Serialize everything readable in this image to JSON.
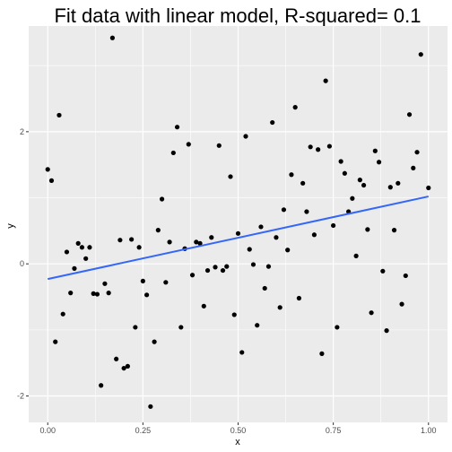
{
  "chart_data": {
    "type": "scatter",
    "title": "Fit data with linear model, R-squared= 0.1",
    "xlabel": "x",
    "ylabel": "y",
    "xlim": [
      -0.05,
      1.05
    ],
    "ylim": [
      -2.4,
      3.6
    ],
    "x_ticks": [
      0.0,
      0.25,
      0.5,
      0.75,
      1.0
    ],
    "x_tick_labels": [
      "0.00",
      "0.25",
      "0.50",
      "0.75",
      "1.00"
    ],
    "y_ticks": [
      -2,
      0,
      2
    ],
    "y_tick_labels": [
      "-2",
      "0",
      "2"
    ],
    "grid": true,
    "colors": {
      "panel": "#ebebeb",
      "grid": "#ffffff",
      "points": "#000000",
      "fit_line": "#3366ff"
    },
    "points": [
      {
        "x": 0.0,
        "y": 1.43
      },
      {
        "x": 0.01,
        "y": 1.26
      },
      {
        "x": 0.02,
        "y": -1.18
      },
      {
        "x": 0.03,
        "y": 2.25
      },
      {
        "x": 0.04,
        "y": -0.76
      },
      {
        "x": 0.05,
        "y": 0.18
      },
      {
        "x": 0.06,
        "y": -0.44
      },
      {
        "x": 0.07,
        "y": -0.07
      },
      {
        "x": 0.08,
        "y": 0.31
      },
      {
        "x": 0.09,
        "y": 0.25
      },
      {
        "x": 0.1,
        "y": 0.08
      },
      {
        "x": 0.11,
        "y": 0.25
      },
      {
        "x": 0.12,
        "y": -0.45
      },
      {
        "x": 0.13,
        "y": -0.46
      },
      {
        "x": 0.14,
        "y": -1.84
      },
      {
        "x": 0.15,
        "y": -0.3
      },
      {
        "x": 0.16,
        "y": -0.44
      },
      {
        "x": 0.17,
        "y": 3.42
      },
      {
        "x": 0.18,
        "y": -1.44
      },
      {
        "x": 0.19,
        "y": 0.36
      },
      {
        "x": 0.2,
        "y": -1.58
      },
      {
        "x": 0.21,
        "y": -1.55
      },
      {
        "x": 0.22,
        "y": 0.37
      },
      {
        "x": 0.23,
        "y": -0.96
      },
      {
        "x": 0.24,
        "y": 0.25
      },
      {
        "x": 0.25,
        "y": -0.26
      },
      {
        "x": 0.26,
        "y": -0.47
      },
      {
        "x": 0.27,
        "y": -2.16
      },
      {
        "x": 0.28,
        "y": -1.18
      },
      {
        "x": 0.29,
        "y": 0.51
      },
      {
        "x": 0.3,
        "y": 0.98
      },
      {
        "x": 0.31,
        "y": -0.28
      },
      {
        "x": 0.32,
        "y": 0.33
      },
      {
        "x": 0.33,
        "y": 1.68
      },
      {
        "x": 0.34,
        "y": 2.07
      },
      {
        "x": 0.35,
        "y": -0.96
      },
      {
        "x": 0.36,
        "y": 0.23
      },
      {
        "x": 0.37,
        "y": 1.81
      },
      {
        "x": 0.38,
        "y": -0.17
      },
      {
        "x": 0.39,
        "y": 0.33
      },
      {
        "x": 0.4,
        "y": 0.31
      },
      {
        "x": 0.41,
        "y": -0.64
      },
      {
        "x": 0.42,
        "y": -0.1
      },
      {
        "x": 0.43,
        "y": 0.4
      },
      {
        "x": 0.44,
        "y": -0.05
      },
      {
        "x": 0.45,
        "y": 1.79
      },
      {
        "x": 0.46,
        "y": -0.1
      },
      {
        "x": 0.47,
        "y": -0.04
      },
      {
        "x": 0.48,
        "y": 1.32
      },
      {
        "x": 0.49,
        "y": -0.77
      },
      {
        "x": 0.5,
        "y": 0.46
      },
      {
        "x": 0.51,
        "y": -1.34
      },
      {
        "x": 0.52,
        "y": 1.93
      },
      {
        "x": 0.53,
        "y": 0.22
      },
      {
        "x": 0.54,
        "y": -0.01
      },
      {
        "x": 0.55,
        "y": -0.93
      },
      {
        "x": 0.56,
        "y": 0.56
      },
      {
        "x": 0.57,
        "y": -0.37
      },
      {
        "x": 0.58,
        "y": -0.04
      },
      {
        "x": 0.59,
        "y": 2.14
      },
      {
        "x": 0.6,
        "y": 0.4
      },
      {
        "x": 0.61,
        "y": -0.66
      },
      {
        "x": 0.62,
        "y": 0.82
      },
      {
        "x": 0.63,
        "y": 0.21
      },
      {
        "x": 0.64,
        "y": 1.35
      },
      {
        "x": 0.65,
        "y": 2.37
      },
      {
        "x": 0.66,
        "y": -0.52
      },
      {
        "x": 0.67,
        "y": 1.22
      },
      {
        "x": 0.68,
        "y": 0.79
      },
      {
        "x": 0.69,
        "y": 1.77
      },
      {
        "x": 0.7,
        "y": 0.44
      },
      {
        "x": 0.71,
        "y": 1.73
      },
      {
        "x": 0.72,
        "y": -1.36
      },
      {
        "x": 0.73,
        "y": 2.77
      },
      {
        "x": 0.74,
        "y": 1.78
      },
      {
        "x": 0.75,
        "y": 0.58
      },
      {
        "x": 0.76,
        "y": -0.96
      },
      {
        "x": 0.77,
        "y": 1.55
      },
      {
        "x": 0.78,
        "y": 1.37
      },
      {
        "x": 0.79,
        "y": 0.79
      },
      {
        "x": 0.8,
        "y": 0.99
      },
      {
        "x": 0.81,
        "y": 0.12
      },
      {
        "x": 0.82,
        "y": 1.27
      },
      {
        "x": 0.83,
        "y": 1.19
      },
      {
        "x": 0.84,
        "y": 0.52
      },
      {
        "x": 0.85,
        "y": -0.74
      },
      {
        "x": 0.86,
        "y": 1.71
      },
      {
        "x": 0.87,
        "y": 1.54
      },
      {
        "x": 0.88,
        "y": -0.11
      },
      {
        "x": 0.89,
        "y": -1.01
      },
      {
        "x": 0.9,
        "y": 1.16
      },
      {
        "x": 0.91,
        "y": 0.51
      },
      {
        "x": 0.92,
        "y": 1.22
      },
      {
        "x": 0.93,
        "y": -0.61
      },
      {
        "x": 0.94,
        "y": -0.18
      },
      {
        "x": 0.95,
        "y": 2.26
      },
      {
        "x": 0.96,
        "y": 1.45
      },
      {
        "x": 0.97,
        "y": 1.69
      },
      {
        "x": 0.98,
        "y": 3.17
      },
      {
        "x": 1.0,
        "y": 1.15
      }
    ],
    "fit_line": {
      "x": [
        0.0,
        1.0
      ],
      "y": [
        -0.23,
        1.02
      ]
    }
  }
}
